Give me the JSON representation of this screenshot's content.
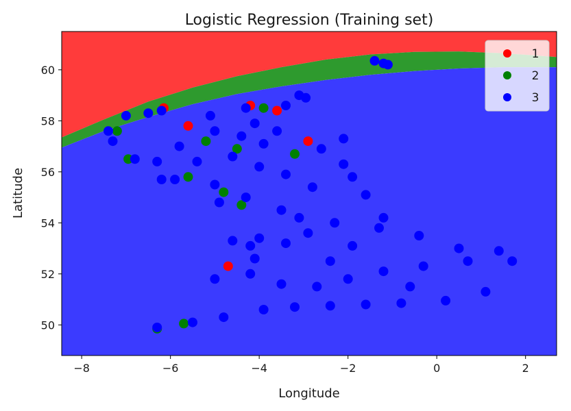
{
  "chart_data": {
    "type": "scatter",
    "title": "Logistic Regression (Training set)",
    "xlabel": "Longitude",
    "ylabel": "Latitude",
    "xlim": [
      -8.45,
      2.7
    ],
    "ylim": [
      48.8,
      61.5
    ],
    "xticks": [
      -8,
      -6,
      -4,
      -2,
      0,
      2
    ],
    "yticks": [
      50,
      52,
      54,
      56,
      58,
      60
    ],
    "xtick_labels": [
      "−8",
      "−6",
      "−4",
      "−2",
      "0",
      "2"
    ],
    "ytick_labels": [
      "50",
      "52",
      "54",
      "56",
      "58",
      "60"
    ],
    "grid": false,
    "legend_position": "top-right",
    "decision_regions": [
      {
        "class": "1",
        "color": "#ff3b3b"
      },
      {
        "class": "2",
        "color": "#2e9a2e"
      },
      {
        "class": "3",
        "color": "#3b3bff"
      }
    ],
    "decision_boundaries": {
      "red_green": [
        [
          -8.45,
          57.35
        ],
        [
          -7.5,
          58.05
        ],
        [
          -6.5,
          58.75
        ],
        [
          -5.5,
          59.3
        ],
        [
          -4.5,
          59.75
        ],
        [
          -3.5,
          60.1
        ],
        [
          -2.5,
          60.4
        ],
        [
          -1.5,
          60.6
        ],
        [
          -0.5,
          60.7
        ],
        [
          0.5,
          60.72
        ],
        [
          1.5,
          60.65
        ],
        [
          2.7,
          60.5
        ]
      ],
      "green_blue": [
        [
          -8.45,
          56.95
        ],
        [
          -7.5,
          57.6
        ],
        [
          -6.5,
          58.15
        ],
        [
          -5.5,
          58.65
        ],
        [
          -4.5,
          59.05
        ],
        [
          -3.5,
          59.35
        ],
        [
          -2.5,
          59.6
        ],
        [
          -1.5,
          59.8
        ],
        [
          -0.5,
          59.95
        ],
        [
          0.5,
          60.05
        ],
        [
          1.5,
          60.1
        ],
        [
          2.7,
          60.1
        ]
      ]
    },
    "series": [
      {
        "name": "1",
        "color": "#ff0000",
        "points": [
          [
            -6.15,
            58.5
          ],
          [
            -5.6,
            57.8
          ],
          [
            -4.2,
            58.6
          ],
          [
            -4.7,
            52.3
          ],
          [
            -2.9,
            57.2
          ],
          [
            -3.6,
            58.4
          ]
        ]
      },
      {
        "name": "2",
        "color": "#008000",
        "points": [
          [
            -6.3,
            49.85
          ],
          [
            -5.7,
            50.05
          ],
          [
            -7.2,
            57.6
          ],
          [
            -6.95,
            56.5
          ],
          [
            -5.6,
            55.8
          ],
          [
            -4.5,
            56.9
          ],
          [
            -3.9,
            58.5
          ],
          [
            -4.4,
            54.7
          ],
          [
            -3.2,
            56.7
          ],
          [
            -5.2,
            57.2
          ],
          [
            -4.8,
            55.2
          ]
        ]
      },
      {
        "name": "3",
        "color": "#0000ff",
        "points": [
          [
            -1.4,
            60.35
          ],
          [
            -1.2,
            60.25
          ],
          [
            -1.1,
            60.2
          ],
          [
            -3.1,
            59.0
          ],
          [
            -2.95,
            58.9
          ],
          [
            -6.3,
            49.9
          ],
          [
            -5.5,
            50.1
          ],
          [
            -4.8,
            50.3
          ],
          [
            -3.9,
            50.6
          ],
          [
            -3.2,
            50.7
          ],
          [
            -2.4,
            50.75
          ],
          [
            -1.6,
            50.8
          ],
          [
            -0.8,
            50.85
          ],
          [
            0.2,
            50.95
          ],
          [
            1.1,
            51.3
          ],
          [
            1.7,
            52.5
          ],
          [
            1.4,
            52.9
          ],
          [
            0.5,
            53.0
          ],
          [
            -0.4,
            53.5
          ],
          [
            -1.2,
            54.2
          ],
          [
            -1.6,
            55.1
          ],
          [
            -1.9,
            55.8
          ],
          [
            -2.1,
            56.3
          ],
          [
            -2.6,
            56.9
          ],
          [
            -2.1,
            57.3
          ],
          [
            -3.6,
            57.6
          ],
          [
            -4.4,
            57.4
          ],
          [
            -5.0,
            57.6
          ],
          [
            -5.8,
            57.0
          ],
          [
            -6.3,
            56.4
          ],
          [
            -6.8,
            56.5
          ],
          [
            -5.9,
            55.7
          ],
          [
            -5.0,
            55.5
          ],
          [
            -4.3,
            55.0
          ],
          [
            -4.9,
            54.8
          ],
          [
            -3.5,
            54.5
          ],
          [
            -3.1,
            54.2
          ],
          [
            -2.9,
            53.6
          ],
          [
            -3.4,
            53.2
          ],
          [
            -4.2,
            53.1
          ],
          [
            -4.6,
            53.3
          ],
          [
            -4.1,
            52.6
          ],
          [
            -4.2,
            52.0
          ],
          [
            -5.0,
            51.8
          ],
          [
            -3.5,
            51.6
          ],
          [
            -2.7,
            51.5
          ],
          [
            -2.0,
            51.8
          ],
          [
            -1.2,
            52.1
          ],
          [
            -0.3,
            52.3
          ],
          [
            0.7,
            52.5
          ],
          [
            -0.6,
            51.5
          ],
          [
            -2.4,
            52.5
          ],
          [
            -1.9,
            53.1
          ],
          [
            -1.3,
            53.8
          ],
          [
            -2.3,
            54.0
          ],
          [
            -2.8,
            55.4
          ],
          [
            -3.4,
            55.9
          ],
          [
            -4.0,
            56.2
          ],
          [
            -4.6,
            56.6
          ],
          [
            -3.9,
            57.1
          ],
          [
            -7.4,
            57.6
          ],
          [
            -7.3,
            57.2
          ],
          [
            -7.0,
            58.2
          ],
          [
            -6.5,
            58.3
          ],
          [
            -6.2,
            58.4
          ],
          [
            -5.1,
            58.2
          ],
          [
            -4.3,
            58.5
          ],
          [
            -3.4,
            58.6
          ],
          [
            -4.1,
            57.9
          ],
          [
            -5.4,
            56.4
          ],
          [
            -6.2,
            55.7
          ],
          [
            -4.0,
            53.4
          ]
        ]
      }
    ]
  }
}
